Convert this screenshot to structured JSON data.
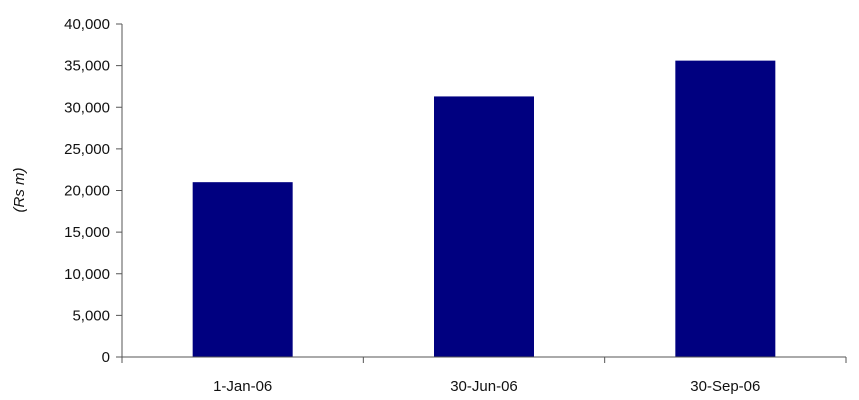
{
  "chart_data": {
    "type": "bar",
    "categories": [
      "1-Jan-06",
      "30-Jun-06",
      "30-Sep-06"
    ],
    "values": [
      21000,
      31300,
      35600
    ],
    "ylabel": "(Rs m)",
    "xlabel": "",
    "ylim": [
      0,
      40000
    ],
    "y_ticks": [
      "0",
      "5,000",
      "10,000",
      "15,000",
      "20,000",
      "25,000",
      "30,000",
      "35,000",
      "40,000"
    ],
    "grid": false,
    "legend": "none",
    "bar_color": "#000080"
  }
}
